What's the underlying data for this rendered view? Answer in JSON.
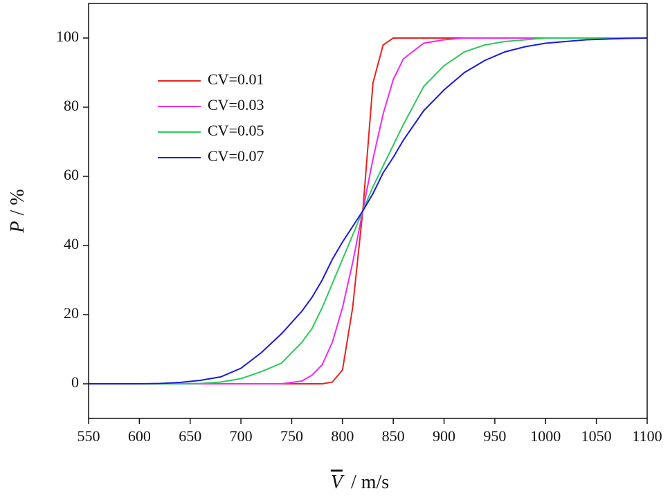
{
  "chart_data": {
    "type": "line",
    "xlabel_symbol": "V",
    "xlabel_unit": "/ m/s",
    "ylabel_symbol": "P",
    "ylabel_unit": "/ %",
    "x": [
      550,
      600,
      620,
      640,
      660,
      680,
      700,
      720,
      740,
      760,
      770,
      780,
      790,
      800,
      810,
      820,
      830,
      840,
      850,
      860,
      880,
      900,
      920,
      940,
      960,
      980,
      1000,
      1020,
      1040,
      1060,
      1080,
      1100
    ],
    "series": [
      {
        "name": "CV=0.01",
        "color": "#e8221e",
        "values": [
          0,
          0,
          0,
          0,
          0,
          0,
          0,
          0,
          0,
          0,
          0,
          0,
          0.5,
          4,
          22,
          50,
          87,
          98,
          100,
          100,
          100,
          100,
          100,
          100,
          100,
          100,
          100,
          100,
          100,
          100,
          100,
          100
        ]
      },
      {
        "name": "CV=0.03",
        "color": "#ee2aee",
        "values": [
          0,
          0,
          0,
          0,
          0,
          0,
          0,
          0,
          0,
          0.8,
          2.5,
          5.5,
          12,
          22,
          35,
          50,
          65,
          78,
          88,
          94,
          98.5,
          99.5,
          100,
          100,
          100,
          100,
          100,
          100,
          100,
          100,
          100,
          100
        ]
      },
      {
        "name": "CV=0.05",
        "color": "#2ec85a",
        "values": [
          0,
          0,
          0,
          0,
          0.1,
          0.5,
          1.5,
          3.5,
          6,
          12,
          16,
          22,
          29,
          36,
          43,
          50,
          57,
          63,
          69,
          75,
          86,
          92,
          96,
          98,
          99,
          99.5,
          100,
          100,
          100,
          100,
          100,
          100
        ]
      },
      {
        "name": "CV=0.07",
        "color": "#1a1ad8",
        "values": [
          0,
          0,
          0.1,
          0.4,
          1,
          2,
          4.5,
          9,
          14.5,
          21,
          25,
          30,
          36,
          41,
          45.5,
          50,
          55,
          61,
          65.5,
          70.5,
          79,
          85,
          90,
          93.5,
          96,
          97.5,
          98.5,
          99,
          99.5,
          99.7,
          99.9,
          100
        ]
      }
    ],
    "xlim": [
      550,
      1100
    ],
    "xticks": [
      550,
      600,
      650,
      700,
      750,
      800,
      850,
      900,
      950,
      1000,
      1050,
      1100
    ],
    "ylim": [
      -10,
      110
    ],
    "yticks": [
      0,
      20,
      40,
      60,
      80,
      100
    ],
    "legend": "upper left",
    "grid": false
  }
}
